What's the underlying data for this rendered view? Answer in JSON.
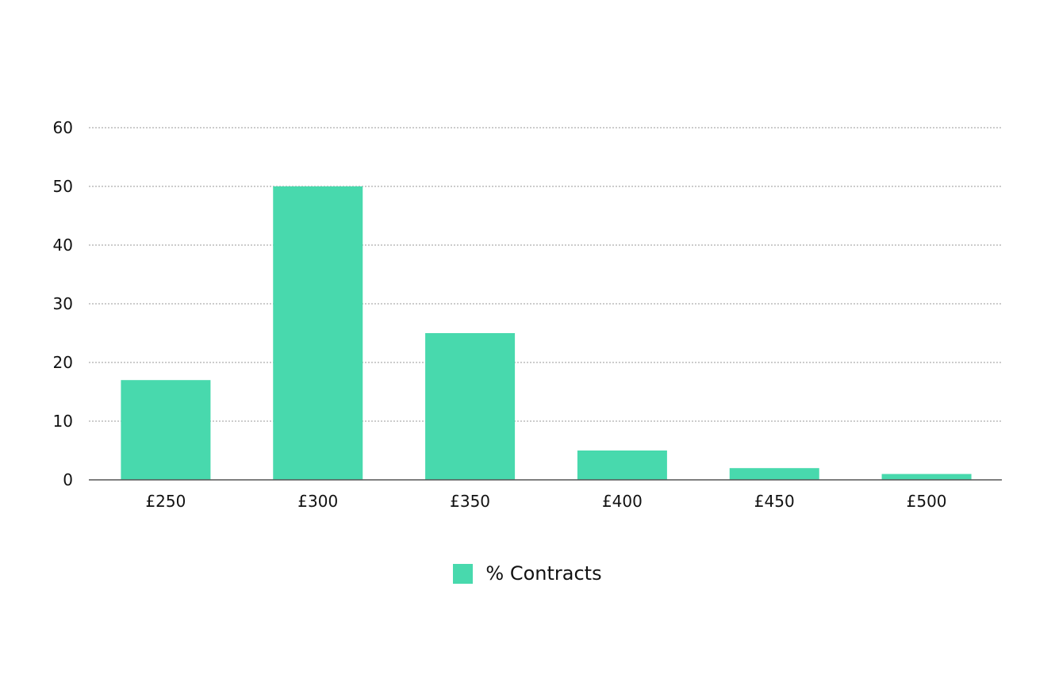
{
  "chart_data": {
    "type": "bar",
    "title": "",
    "xlabel": "",
    "ylabel": "",
    "categories": [
      "£250",
      "£300",
      "£350",
      "£400",
      "£450",
      "£500"
    ],
    "series": [
      {
        "name": "% Contracts",
        "values": [
          17,
          50,
          25,
          5,
          2,
          1
        ]
      }
    ],
    "ylim": [
      0,
      60
    ],
    "yticks": [
      "0",
      "10",
      "20",
      "30",
      "40",
      "50",
      "60"
    ],
    "grid": true,
    "legend_position": "bottom-center",
    "colors": {
      "bar": "#48d9ad",
      "grid": "#9a9a9a",
      "axis": "#555555"
    }
  },
  "legend": {
    "label": "% Contracts"
  }
}
